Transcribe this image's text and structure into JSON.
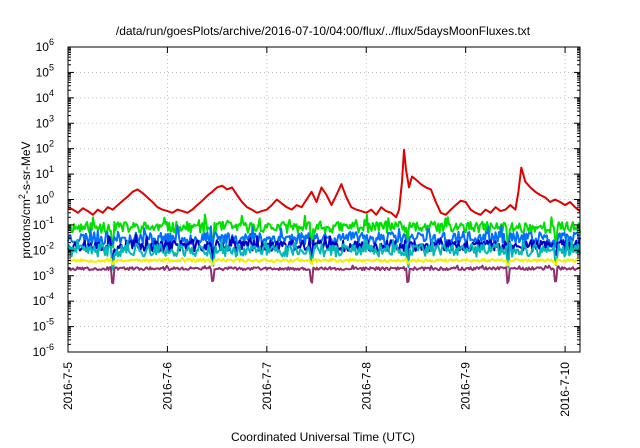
{
  "chart_data": {
    "type": "line",
    "title": "/data/run/goesPlots/archive/2016-07-10/04:00/flux/../flux/5daysMoonFluxes.txt",
    "xlabel": "Coordinated Universal Time (UTC)",
    "ylabel": "protons/cm2-s-sr-MeV",
    "ylabel_main": "protons/cm",
    "ylabel_sup": "2",
    "ylabel_rest": "-s-sr-MeV",
    "y_scale": "log",
    "ylim": [
      1e-06,
      1000000.0
    ],
    "xlim": [
      0,
      5.15
    ],
    "grid": true,
    "legend": "none",
    "x_ticks": [
      {
        "pos": 0,
        "label": "2016-7-5"
      },
      {
        "pos": 1,
        "label": "2016-7-6"
      },
      {
        "pos": 2,
        "label": "2016-7-7"
      },
      {
        "pos": 3,
        "label": "2016-7-8"
      },
      {
        "pos": 4,
        "label": "2016-7-9"
      },
      {
        "pos": 5,
        "label": "2016-7-10"
      }
    ],
    "y_ticks": [
      {
        "exp": -6,
        "label": "10",
        "sup": "-6"
      },
      {
        "exp": -5,
        "label": "10",
        "sup": "-5"
      },
      {
        "exp": -4,
        "label": "10",
        "sup": "-4"
      },
      {
        "exp": -3,
        "label": "10",
        "sup": "-3"
      },
      {
        "exp": -2,
        "label": "10",
        "sup": "-2"
      },
      {
        "exp": -1,
        "label": "10",
        "sup": "-1"
      },
      {
        "exp": 0,
        "label": "10",
        "sup": "0"
      },
      {
        "exp": 1,
        "label": "10",
        "sup": "1"
      },
      {
        "exp": 2,
        "label": "10",
        "sup": "2"
      },
      {
        "exp": 3,
        "label": "10",
        "sup": "3"
      },
      {
        "exp": 4,
        "label": "10",
        "sup": "4"
      },
      {
        "exp": 5,
        "label": "10",
        "sup": "5"
      },
      {
        "exp": 6,
        "label": "10",
        "sup": "6"
      }
    ],
    "series": [
      {
        "color": "#e00000",
        "x": [
          0,
          0.05,
          0.1,
          0.15,
          0.2,
          0.25,
          0.3,
          0.35,
          0.4,
          0.45,
          0.5,
          0.55,
          0.6,
          0.65,
          0.7,
          0.75,
          0.8,
          0.85,
          0.9,
          0.95,
          1.0,
          1.05,
          1.1,
          1.15,
          1.2,
          1.25,
          1.3,
          1.35,
          1.4,
          1.45,
          1.5,
          1.55,
          1.6,
          1.65,
          1.7,
          1.75,
          1.8,
          1.85,
          1.9,
          1.95,
          2.0,
          2.05,
          2.1,
          2.15,
          2.2,
          2.25,
          2.3,
          2.35,
          2.4,
          2.45,
          2.5,
          2.55,
          2.6,
          2.65,
          2.7,
          2.75,
          2.8,
          2.85,
          2.9,
          2.95,
          3.0,
          3.05,
          3.1,
          3.15,
          3.2,
          3.25,
          3.3,
          3.33,
          3.36,
          3.38,
          3.4,
          3.43,
          3.46,
          3.5,
          3.55,
          3.6,
          3.65,
          3.7,
          3.75,
          3.8,
          3.85,
          3.9,
          3.95,
          4.0,
          4.05,
          4.1,
          4.15,
          4.2,
          4.25,
          4.3,
          4.35,
          4.4,
          4.45,
          4.5,
          4.53,
          4.56,
          4.6,
          4.65,
          4.7,
          4.75,
          4.8,
          4.85,
          4.9,
          4.95,
          5.0,
          5.05,
          5.1,
          5.15
        ],
        "y": [
          0.5,
          0.4,
          0.3,
          0.45,
          0.35,
          0.25,
          0.4,
          0.3,
          0.5,
          0.4,
          0.6,
          0.9,
          1.3,
          2.0,
          2.5,
          1.8,
          1.2,
          0.8,
          0.5,
          0.4,
          0.35,
          0.3,
          0.4,
          0.35,
          0.3,
          0.4,
          0.6,
          0.9,
          1.4,
          2.0,
          3.0,
          3.5,
          2.5,
          3.0,
          1.5,
          0.8,
          0.5,
          0.4,
          0.3,
          0.35,
          0.4,
          0.6,
          1.0,
          0.7,
          0.5,
          0.4,
          0.6,
          0.5,
          1.0,
          2.0,
          0.8,
          3.0,
          1.5,
          0.6,
          1.5,
          4.0,
          1.2,
          0.5,
          0.4,
          0.35,
          0.3,
          0.4,
          0.25,
          0.5,
          0.35,
          0.3,
          0.2,
          0.4,
          5.0,
          90.0,
          15.0,
          3.0,
          8.0,
          6.0,
          4.0,
          3.0,
          2.5,
          0.8,
          0.3,
          0.25,
          0.4,
          0.6,
          0.9,
          0.8,
          0.4,
          0.3,
          0.25,
          0.4,
          0.3,
          0.5,
          0.35,
          0.4,
          0.6,
          0.4,
          2.0,
          18.0,
          5.0,
          3.0,
          2.0,
          1.5,
          1.2,
          0.8,
          1.0,
          0.8,
          0.6,
          0.8,
          0.5,
          0.35
        ]
      },
      {
        "color": "#00e000",
        "base": 0.08,
        "amp": 0.45,
        "spike": 1.9,
        "drop": 0.25,
        "seed": 11
      },
      {
        "color": "#0070ff",
        "base": 0.03,
        "amp": 0.5,
        "spike": 1.8,
        "drop": 0.3,
        "seed": 23
      },
      {
        "color": "#0000c8",
        "base": 0.015,
        "amp": 0.45,
        "spike": 1.7,
        "drop": 0.35,
        "seed": 37
      },
      {
        "color": "#00b8b8",
        "base": 0.01,
        "amp": 0.5,
        "spike": 1.5,
        "drop": 0.3,
        "seed": 41
      },
      {
        "color": "#f0f000",
        "base": 0.004,
        "amp": 0.12,
        "spike": 1.1,
        "drop": 0.7,
        "seed": 53
      },
      {
        "color": "#903070",
        "base": 0.0019,
        "amp": 0.12,
        "spike": 1.15,
        "drop": 0.3,
        "seed": 67
      }
    ]
  }
}
